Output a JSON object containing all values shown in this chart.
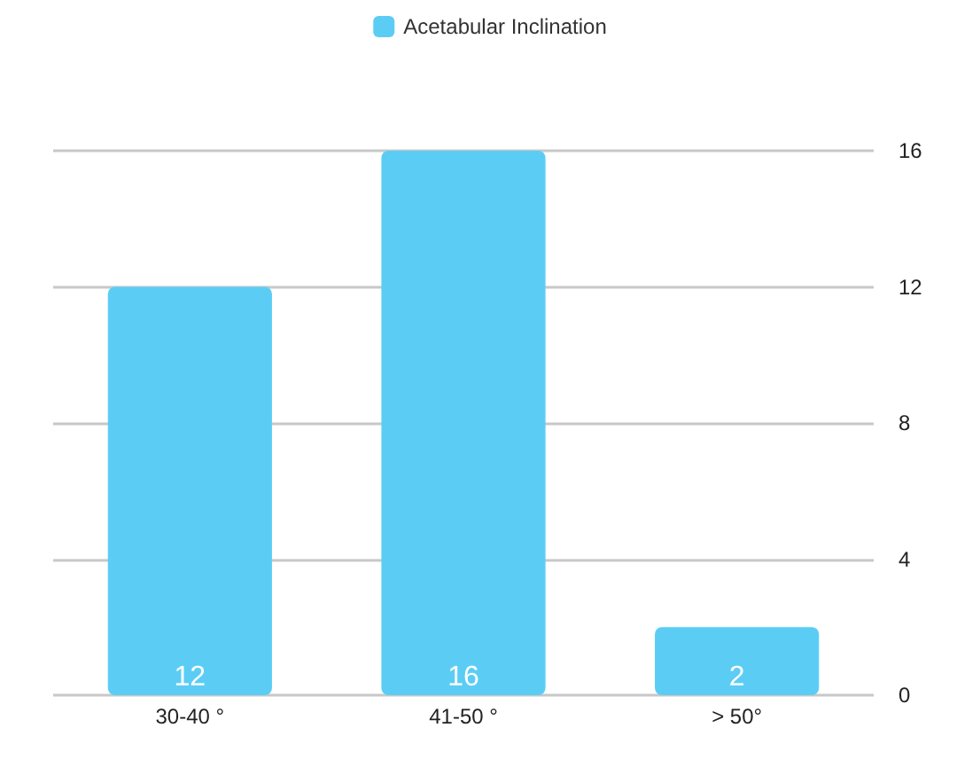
{
  "chart_data": {
    "type": "bar",
    "categories": [
      "30-40 °",
      "41-50 °",
      "> 50°"
    ],
    "series": [
      {
        "name": "Acetabular Inclination",
        "color": "#5bcdf5",
        "values": [
          12,
          16,
          2
        ]
      }
    ],
    "ylim": [
      0,
      16
    ],
    "yticks": [
      0,
      4,
      8,
      12,
      16
    ],
    "grid": "y",
    "legend": "top",
    "data_labels": true
  }
}
